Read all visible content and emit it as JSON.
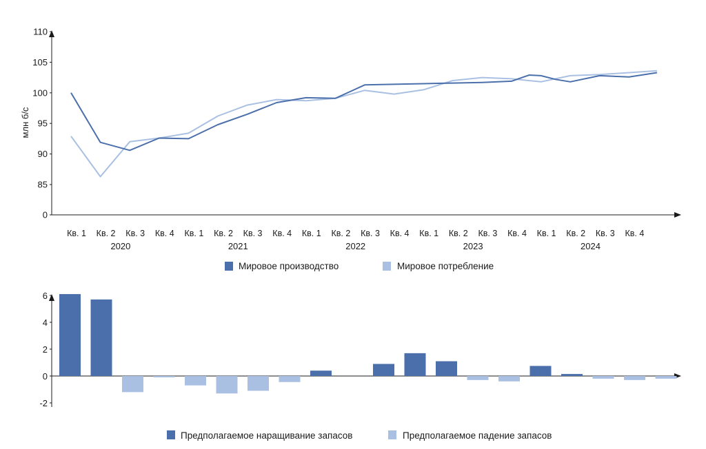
{
  "colors": {
    "dark": "#4A6FAA",
    "light": "#A9C0E3",
    "axis": "#1a1a1a"
  },
  "chart_data": [
    {
      "type": "line",
      "ylabel": "млн б/с",
      "ylim": [
        0,
        110
      ],
      "yticks": [
        "0",
        "85",
        "90",
        "95",
        "100",
        "105",
        "110"
      ],
      "axis_break": "0 to 85",
      "categories": [
        "Кв. 1",
        "Кв. 2",
        "Кв. 3",
        "Кв. 4",
        "Кв. 1",
        "Кв. 2",
        "Кв. 3",
        "Кв. 4",
        "Кв. 1",
        "Кв. 2",
        "Кв. 3",
        "Кв. 4",
        "Кв. 1",
        "Кв. 2",
        "Кв. 3",
        "Кв. 4",
        "Кв. 1",
        "Кв. 2",
        "Кв. 3",
        "Кв. 4"
      ],
      "years": [
        "2020",
        "2021",
        "2022",
        "2023",
        "2024"
      ],
      "x": [
        0,
        1,
        2,
        3,
        4,
        5,
        6,
        7,
        8,
        9,
        10,
        11,
        12,
        13,
        14,
        15,
        16,
        17,
        18,
        19
      ],
      "series": [
        {
          "name": "Мировое производство",
          "color": "#4A6FAA",
          "x": [
            0,
            1,
            2,
            3,
            4,
            5,
            6,
            7,
            8,
            9,
            10,
            11,
            12,
            13,
            14,
            15,
            15.6,
            16,
            16.5,
            17,
            18,
            19,
            19.95
          ],
          "values": [
            100.0,
            91.9,
            90.6,
            92.6,
            92.5,
            94.8,
            96.5,
            98.4,
            99.2,
            99.1,
            101.3,
            101.4,
            101.5,
            101.6,
            101.7,
            101.9,
            102.9,
            102.8,
            102.2,
            101.8,
            102.8,
            102.6,
            103.3
          ]
        },
        {
          "name": "Мировое потребление",
          "color": "#A9C0E3",
          "x": [
            0,
            1,
            2,
            3,
            4,
            5,
            6,
            7,
            8,
            9,
            10,
            11,
            12,
            13,
            14,
            15,
            16,
            17,
            18,
            19,
            19.95
          ],
          "values": [
            92.9,
            86.3,
            92.0,
            92.6,
            93.4,
            96.2,
            98.0,
            98.9,
            98.7,
            99.1,
            100.4,
            99.8,
            100.5,
            102.0,
            102.5,
            102.3,
            101.8,
            102.8,
            103.0,
            103.3,
            103.6
          ]
        }
      ],
      "legend": [
        "Мировое производство",
        "Мировое потребление"
      ],
      "legend_position": "bottom"
    },
    {
      "type": "bar",
      "ylim": [
        -2,
        6
      ],
      "yticks": [
        "-2",
        "0",
        "2",
        "4",
        "6"
      ],
      "values": [
        6.1,
        5.7,
        -1.2,
        -0.1,
        -0.7,
        -1.3,
        -1.1,
        -0.45,
        0.4,
        0.0,
        0.9,
        1.7,
        1.1,
        -0.3,
        -0.4,
        0.75,
        0.15,
        -0.2,
        -0.3,
        -0.2
      ],
      "series": [
        {
          "name": "Предполагаемое наращивание запасов",
          "color": "#4A6FAA"
        },
        {
          "name": "Предполагаемое падение запасов",
          "color": "#A9C0E3"
        }
      ],
      "legend_position": "bottom"
    }
  ]
}
